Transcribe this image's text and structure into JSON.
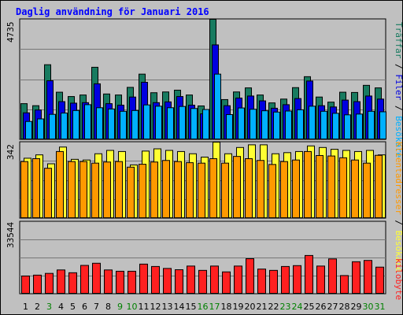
{
  "title": "Daglig användning för Januari 2016",
  "colors": {
    "title": "#0000ff",
    "visits": "#187b60",
    "pages": "#0000e0",
    "hits": "#00b0ff",
    "hosts_dark": "#ff9900",
    "hosts_light": "#ffff33",
    "kbytes": "#ff2020",
    "weekday": "#000000",
    "weekend": "#008000"
  },
  "chart_data": [
    {
      "type": "bar",
      "panel": "top",
      "ymax": 4735,
      "ytick_label": "4735",
      "legend": {
        "part1": "Träffar",
        "sep1": " / ",
        "part2": "Filer",
        "sep2": " / ",
        "part3": "Besökare",
        "tail": ""
      },
      "categories": [
        "1",
        "2",
        "3",
        "4",
        "5",
        "6",
        "7",
        "8",
        "9",
        "10",
        "11",
        "12",
        "13",
        "14",
        "15",
        "16",
        "17",
        "18",
        "19",
        "20",
        "21",
        "22",
        "23",
        "24",
        "25",
        "26",
        "27",
        "28",
        "29",
        "30",
        "31"
      ],
      "series": [
        {
          "name": "Träffar",
          "values": [
            1420,
            1340,
            2950,
            1870,
            1700,
            1760,
            2850,
            1800,
            1760,
            2060,
            2580,
            1850,
            1880,
            1950,
            1760,
            1330,
            4735,
            1580,
            1880,
            2040,
            1760,
            1450,
            1600,
            2050,
            2480,
            1680,
            1480,
            1870,
            1860,
            2140,
            2040
          ]
        },
        {
          "name": "Filer",
          "values": [
            1060,
            1170,
            2320,
            1500,
            1440,
            1460,
            2200,
            1420,
            1360,
            1680,
            2260,
            1460,
            1490,
            1700,
            1360,
            1020,
            3730,
            1340,
            1640,
            1720,
            1530,
            1240,
            1380,
            1620,
            2310,
            1340,
            1290,
            1560,
            1500,
            1720,
            1600
          ]
        },
        {
          "name": "Besökare",
          "values": [
            720,
            820,
            1000,
            1050,
            1150,
            1380,
            1260,
            1210,
            1120,
            1150,
            1370,
            1320,
            1260,
            1310,
            1230,
            1190,
            2580,
            990,
            1250,
            1200,
            1140,
            1090,
            1130,
            1180,
            1320,
            1120,
            1040,
            980,
            1010,
            1120,
            1100
          ]
        }
      ]
    },
    {
      "type": "bar",
      "panel": "middle",
      "ymax": 342,
      "ytick_label": "342",
      "legend": {
        "part1": "Klientadresser",
        "sep1": " / ",
        "part2": "Besökare",
        "tail": ""
      },
      "categories": [
        "1",
        "2",
        "3",
        "4",
        "5",
        "6",
        "7",
        "8",
        "9",
        "10",
        "11",
        "12",
        "13",
        "14",
        "15",
        "16",
        "17",
        "18",
        "19",
        "20",
        "21",
        "22",
        "23",
        "24",
        "25",
        "26",
        "27",
        "28",
        "29",
        "30",
        "31"
      ],
      "series": [
        {
          "name": "Klientadresser",
          "values": [
            255,
            268,
            225,
            300,
            255,
            255,
            248,
            253,
            255,
            230,
            243,
            253,
            260,
            255,
            250,
            248,
            268,
            248,
            278,
            268,
            260,
            242,
            255,
            262,
            300,
            282,
            280,
            272,
            262,
            248,
            283
          ]
        },
        {
          "name": "Besökare",
          "values": [
            270,
            285,
            245,
            320,
            265,
            262,
            290,
            305,
            300,
            240,
            302,
            312,
            305,
            300,
            290,
            275,
            342,
            290,
            318,
            330,
            330,
            290,
            295,
            300,
            325,
            318,
            310,
            305,
            300,
            305,
            285
          ]
        }
      ]
    },
    {
      "type": "bar",
      "panel": "bottom",
      "ymax": 33544,
      "ytick_label": "33544",
      "legend": {
        "part1": "kilobyte"
      },
      "categories": [
        "1",
        "2",
        "3",
        "4",
        "5",
        "6",
        "7",
        "8",
        "9",
        "10",
        "11",
        "12",
        "13",
        "14",
        "15",
        "16",
        "17",
        "18",
        "19",
        "20",
        "21",
        "22",
        "23",
        "24",
        "25",
        "26",
        "27",
        "28",
        "29",
        "30",
        "31"
      ],
      "series": [
        {
          "name": "kilobyte",
          "values": [
            8400,
            8800,
            9600,
            11200,
            9900,
            13300,
            14300,
            11200,
            10600,
            10600,
            13900,
            12800,
            11900,
            11300,
            13000,
            11000,
            13000,
            10300,
            13000,
            16400,
            11600,
            11000,
            12800,
            13200,
            17900,
            13000,
            16300,
            8600,
            15000,
            15600,
            12500
          ]
        }
      ]
    }
  ],
  "weekend_days": [
    3,
    9,
    10,
    16,
    17,
    23,
    24,
    30,
    31
  ]
}
